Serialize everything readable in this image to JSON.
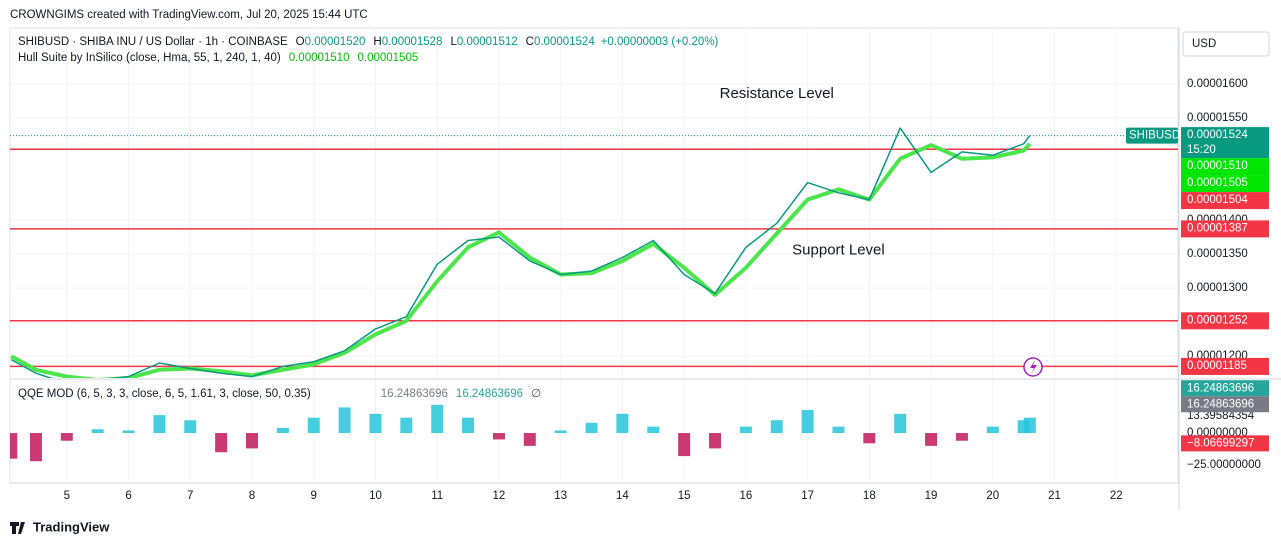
{
  "header": {
    "title": "CROWNGIMS created with TradingView.com, Jul 20, 2025 15:44 UTC",
    "currency": "USD"
  },
  "footer": {
    "brand": "TradingView"
  },
  "chart_data": [
    {
      "type": "line",
      "title": "SHIBUSD · SHIBA INU / US Dollar · 1h · COINBASE",
      "ohlc": [
        {
          "key": "O",
          "value": "0.00001520"
        },
        {
          "key": "H",
          "value": "0.00001528"
        },
        {
          "key": "L",
          "value": "0.00001512"
        },
        {
          "key": "C",
          "value": "0.00001524"
        }
      ],
      "change": "+0.00000003 (+0.20%)",
      "indicator": "Hull Suite by InSilico (close, Hma, 55, 1, 240, 1, 40)",
      "hull_tags": [
        {
          "value": 1.51e-05,
          "label": "0.00001510"
        },
        {
          "value": 1.505e-05,
          "label": "0.00001505"
        }
      ],
      "last_price": {
        "symbol": "SHIBUSD",
        "value": 1.524e-05,
        "label": "0.00001524",
        "countdown": "15:20"
      },
      "annotations": [
        {
          "text": "Resistance Level",
          "x": 16.5,
          "y": 1.585e-05
        },
        {
          "text": "Support Level",
          "x": 17.5,
          "y": 1.355e-05
        }
      ],
      "x": [
        4.1,
        4.5,
        5,
        5.5,
        6,
        6.5,
        7,
        7.5,
        8,
        8.5,
        9,
        9.5,
        10,
        10.5,
        11,
        11.5,
        12,
        12.5,
        13,
        13.5,
        14,
        14.5,
        15,
        15.5,
        16,
        16.5,
        17,
        17.5,
        18,
        18.5,
        19,
        19.5,
        20,
        20.5,
        20.6
      ],
      "xlim": [
        4.08,
        23.0
      ],
      "xticks": [
        5,
        6,
        7,
        8,
        9,
        10,
        11,
        12,
        13,
        14,
        15,
        16,
        17,
        18,
        19,
        20,
        21,
        22
      ],
      "ylim": [
        1.168e-05,
        1.682e-05
      ],
      "yticks": [
        {
          "value": 1.6e-05,
          "label": "0.00001600"
        },
        {
          "value": 1.55e-05,
          "label": "0.00001550"
        },
        {
          "value": 1.4e-05,
          "label": "0.00001400"
        },
        {
          "value": 1.35e-05,
          "label": "0.00001350"
        },
        {
          "value": 1.3e-05,
          "label": "0.00001300"
        },
        {
          "value": 1.2e-05,
          "label": "0.00001200"
        }
      ],
      "grid": true,
      "levels": [
        {
          "value": 1.504e-05,
          "label": "0.00001504"
        },
        {
          "value": 1.387e-05,
          "label": "0.00001387"
        },
        {
          "value": 1.252e-05,
          "label": "0.00001252"
        },
        {
          "value": 1.185e-05,
          "label": "0.00001185"
        }
      ],
      "level_color": "#f23645",
      "series": [
        {
          "name": "close",
          "color": "#089981",
          "values": [
            1.195e-05,
            1.175e-05,
            1.16e-05,
            1.165e-05,
            1.17e-05,
            1.19e-05,
            1.182e-05,
            1.175e-05,
            1.17e-05,
            1.185e-05,
            1.192e-05,
            1.208e-05,
            1.24e-05,
            1.258e-05,
            1.335e-05,
            1.37e-05,
            1.375e-05,
            1.34e-05,
            1.32e-05,
            1.325e-05,
            1.345e-05,
            1.37e-05,
            1.32e-05,
            1.292e-05,
            1.36e-05,
            1.395e-05,
            1.455e-05,
            1.44e-05,
            1.43e-05,
            1.535e-05,
            1.47e-05,
            1.5e-05,
            1.495e-05,
            1.512e-05,
            1.524e-05
          ]
        },
        {
          "name": "hull",
          "color": "#4ce64c",
          "values": [
            1.2e-05,
            1.18e-05,
            1.17e-05,
            1.165e-05,
            1.168e-05,
            1.18e-05,
            1.182e-05,
            1.178e-05,
            1.172e-05,
            1.18e-05,
            1.188e-05,
            1.205e-05,
            1.232e-05,
            1.252e-05,
            1.31e-05,
            1.36e-05,
            1.382e-05,
            1.345e-05,
            1.32e-05,
            1.322e-05,
            1.34e-05,
            1.365e-05,
            1.33e-05,
            1.29e-05,
            1.33e-05,
            1.38e-05,
            1.43e-05,
            1.445e-05,
            1.43e-05,
            1.49e-05,
            1.51e-05,
            1.49e-05,
            1.492e-05,
            1.502e-05,
            1.512e-05
          ]
        }
      ]
    },
    {
      "type": "bar",
      "title": "QQE MOD (6, 5, 3, 3, close, 6, 5, 1.61, 3, close, 50, 0.35)",
      "legend_values": [
        "16.24863696",
        "16.24863696",
        "∅"
      ],
      "x": [
        4.1,
        4.5,
        5,
        5.5,
        6,
        6.5,
        7,
        7.5,
        8,
        8.5,
        9,
        9.5,
        10,
        10.5,
        11,
        11.5,
        12,
        12.5,
        13,
        13.5,
        14,
        14.5,
        15,
        15.5,
        16,
        16.5,
        17,
        17.5,
        18,
        18.5,
        19,
        19.5,
        20,
        20.5,
        20.6
      ],
      "values": [
        -20,
        -22,
        -6,
        3,
        2,
        14,
        10,
        -15,
        -12,
        4,
        12,
        20,
        15,
        12,
        22,
        12,
        -5,
        -10,
        2,
        8,
        15,
        5,
        -18,
        -12,
        5,
        10,
        18,
        5,
        -8,
        15,
        -10,
        -6,
        5,
        10,
        12
      ],
      "colors": {
        "up": "#26c6da",
        "down": "#c2185b"
      },
      "ylim": [
        -39,
        41.4
      ],
      "yticks": [
        13.39584354,
        {
          "value": 0,
          "label": "0.00000000"
        },
        {
          "value": -25,
          "label": "−25.00000000"
        }
      ],
      "tags": [
        {
          "value": 16.24863696,
          "color": "#26a69a"
        },
        {
          "value": 16.24863696,
          "color": "#787b86"
        },
        {
          "value": -8.06699297,
          "label": "−8.06699297",
          "color": "#f23645"
        }
      ]
    }
  ]
}
